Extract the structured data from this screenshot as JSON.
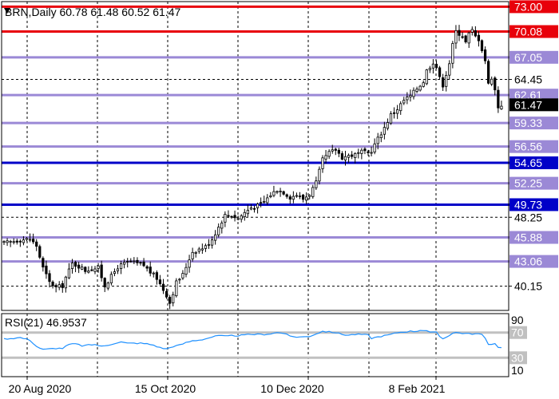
{
  "header": {
    "symbol_info": "BRN,Daily  60.78 61.48 60.52 61.47",
    "rsi_info": "RSI(21) 46.9537"
  },
  "colors": {
    "background": "#ffffff",
    "frame": "#000000",
    "grid": "#000000",
    "candle": "#000000",
    "rsi_line": "#1e90ff",
    "rsi_level": "#c0c0c0",
    "level_red": "#e8000b",
    "level_purple": "#9b89d6",
    "level_blue": "#0000c8",
    "current_price_bg": "#000000"
  },
  "chart_data": [
    {
      "type": "candlestick",
      "title": "BRN,Daily",
      "ohlc_last": {
        "open": 60.78,
        "high": 61.48,
        "low": 60.52,
        "close": 61.47
      },
      "current_price_label": "61.47",
      "x_tick_labels": [
        "20 Aug 2020",
        "15 Oct 2020",
        "10 Dec 2020",
        "8 Feb 2021"
      ],
      "y_tick_labels": [
        "73.00",
        "70.08",
        "67.05",
        "64.45",
        "62.61",
        "61.47",
        "59.33",
        "56.56",
        "54.65",
        "52.25",
        "49.73",
        "48.25",
        "45.88",
        "43.06",
        "40.15"
      ],
      "ylim": [
        37.3,
        73.6
      ],
      "x_range": [
        0,
        154
      ],
      "grid": true,
      "close_anchors": [
        [
          0,
          45.2
        ],
        [
          5,
          45.6
        ],
        [
          8,
          45.7
        ],
        [
          10,
          44.9
        ],
        [
          12,
          42.3
        ],
        [
          14,
          40.6
        ],
        [
          16,
          40.0
        ],
        [
          18,
          40.2
        ],
        [
          19,
          41.2
        ],
        [
          21,
          42.8
        ],
        [
          23,
          42.5
        ],
        [
          25,
          42.0
        ],
        [
          27,
          42.2
        ],
        [
          29,
          42.3
        ],
        [
          31,
          40.2
        ],
        [
          33,
          41.3
        ],
        [
          35,
          42.4
        ],
        [
          37,
          42.8
        ],
        [
          39,
          43.0
        ],
        [
          41,
          42.8
        ],
        [
          43,
          42.6
        ],
        [
          45,
          41.8
        ],
        [
          47,
          41.1
        ],
        [
          48,
          40.4
        ],
        [
          50,
          39.1
        ],
        [
          51,
          38.2
        ],
        [
          53,
          40.6
        ],
        [
          55,
          41.5
        ],
        [
          57,
          43.4
        ],
        [
          58,
          44.2
        ],
        [
          60,
          44.5
        ],
        [
          62,
          44.8
        ],
        [
          64,
          45.7
        ],
        [
          66,
          47.1
        ],
        [
          68,
          48.5
        ],
        [
          70,
          48.5
        ],
        [
          72,
          48.1
        ],
        [
          74,
          48.8
        ],
        [
          76,
          49.4
        ],
        [
          78,
          49.6
        ],
        [
          80,
          50.1
        ],
        [
          82,
          50.9
        ],
        [
          84,
          51.5
        ],
        [
          86,
          51.2
        ],
        [
          88,
          50.6
        ],
        [
          90,
          50.9
        ],
        [
          92,
          50.4
        ],
        [
          94,
          51.0
        ],
        [
          96,
          52.3
        ],
        [
          98,
          55.0
        ],
        [
          100,
          55.8
        ],
        [
          102,
          56.2
        ],
        [
          104,
          55.3
        ],
        [
          106,
          55.5
        ],
        [
          108,
          55.6
        ],
        [
          110,
          55.9
        ],
        [
          112,
          55.8
        ],
        [
          113,
          56.1
        ],
        [
          115,
          57.5
        ],
        [
          117,
          58.8
        ],
        [
          119,
          60.3
        ],
        [
          121,
          61.0
        ],
        [
          123,
          62.0
        ],
        [
          125,
          62.5
        ],
        [
          127,
          63.4
        ],
        [
          129,
          64.2
        ],
        [
          130,
          65.5
        ],
        [
          132,
          66.5
        ],
        [
          133,
          65.9
        ],
        [
          134,
          64.6
        ],
        [
          135,
          63.8
        ],
        [
          137,
          66.4
        ],
        [
          138,
          68.5
        ],
        [
          139,
          70.1
        ],
        [
          141,
          69.6
        ],
        [
          142,
          68.8
        ],
        [
          143,
          69.8
        ],
        [
          144,
          70.2
        ],
        [
          145,
          69.5
        ],
        [
          146,
          69.2
        ],
        [
          147,
          68.0
        ],
        [
          148,
          66.7
        ],
        [
          149,
          63.9
        ],
        [
          150,
          64.7
        ],
        [
          151,
          63.2
        ],
        [
          152,
          61.2
        ],
        [
          153,
          61.47
        ]
      ],
      "levels": [
        {
          "value": 73.0,
          "label": "73.00",
          "style": "red"
        },
        {
          "value": 70.08,
          "label": "70.08",
          "style": "red"
        },
        {
          "value": 67.05,
          "label": "67.05",
          "style": "purple"
        },
        {
          "value": 62.61,
          "label": "62.61",
          "style": "purple"
        },
        {
          "value": 59.33,
          "label": "59.33",
          "style": "purple"
        },
        {
          "value": 56.56,
          "label": "56.56",
          "style": "purple"
        },
        {
          "value": 54.65,
          "label": "54.65",
          "style": "blue"
        },
        {
          "value": 52.25,
          "label": "52.25",
          "style": "purple"
        },
        {
          "value": 49.73,
          "label": "49.73",
          "style": "blue"
        },
        {
          "value": 45.88,
          "label": "45.88",
          "style": "purple"
        },
        {
          "value": 43.06,
          "label": "43.06",
          "style": "purple"
        }
      ]
    },
    {
      "type": "line",
      "title": "RSI(21) 46.9537",
      "series_value": 46.9537,
      "ylim": [
        0,
        100
      ],
      "y_tick_labels": [
        "90",
        "70",
        "30",
        "10"
      ],
      "levels": [
        70,
        30
      ],
      "anchors": [
        [
          0,
          60
        ],
        [
          3,
          61
        ],
        [
          5,
          62
        ],
        [
          8,
          58
        ],
        [
          10,
          48
        ],
        [
          12,
          43
        ],
        [
          14,
          44
        ],
        [
          16,
          45
        ],
        [
          18,
          45
        ],
        [
          20,
          51
        ],
        [
          22,
          52
        ],
        [
          24,
          49
        ],
        [
          26,
          50
        ],
        [
          28,
          51
        ],
        [
          30,
          48
        ],
        [
          32,
          50
        ],
        [
          34,
          53
        ],
        [
          36,
          55
        ],
        [
          38,
          53
        ],
        [
          40,
          53
        ],
        [
          42,
          53
        ],
        [
          44,
          52
        ],
        [
          46,
          50
        ],
        [
          48,
          46
        ],
        [
          50,
          44
        ],
        [
          52,
          48
        ],
        [
          54,
          50
        ],
        [
          56,
          54
        ],
        [
          58,
          57
        ],
        [
          60,
          58
        ],
        [
          62,
          60
        ],
        [
          64,
          63
        ],
        [
          66,
          65
        ],
        [
          68,
          64
        ],
        [
          70,
          65
        ],
        [
          72,
          65
        ],
        [
          74,
          66
        ],
        [
          76,
          67
        ],
        [
          78,
          67
        ],
        [
          80,
          67
        ],
        [
          82,
          68
        ],
        [
          84,
          70
        ],
        [
          86,
          69
        ],
        [
          88,
          64
        ],
        [
          90,
          63
        ],
        [
          92,
          63
        ],
        [
          94,
          64
        ],
        [
          96,
          68
        ],
        [
          98,
          72
        ],
        [
          100,
          71
        ],
        [
          102,
          70
        ],
        [
          104,
          67
        ],
        [
          106,
          66
        ],
        [
          108,
          67
        ],
        [
          110,
          67
        ],
        [
          112,
          66
        ],
        [
          113,
          61
        ],
        [
          115,
          63
        ],
        [
          117,
          65
        ],
        [
          119,
          67
        ],
        [
          121,
          70
        ],
        [
          123,
          71
        ],
        [
          125,
          72
        ],
        [
          127,
          72
        ],
        [
          128,
          74
        ],
        [
          130,
          73
        ],
        [
          131,
          70
        ],
        [
          133,
          70
        ],
        [
          134,
          64
        ],
        [
          135,
          60
        ],
        [
          137,
          66
        ],
        [
          138,
          69
        ],
        [
          139,
          70
        ],
        [
          141,
          69
        ],
        [
          143,
          68
        ],
        [
          145,
          68
        ],
        [
          147,
          67
        ],
        [
          148,
          60
        ],
        [
          149,
          51
        ],
        [
          150,
          52
        ],
        [
          151,
          53
        ],
        [
          152,
          46
        ],
        [
          153,
          47
        ]
      ]
    }
  ]
}
